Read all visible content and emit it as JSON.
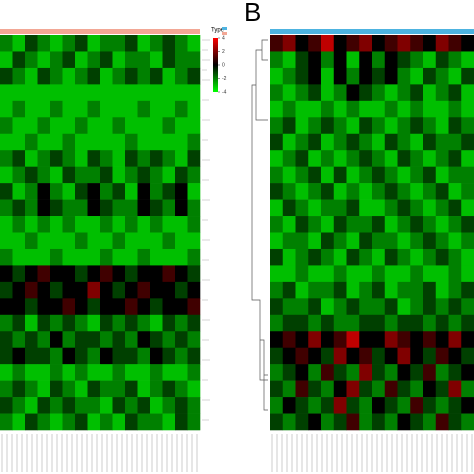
{
  "chart_data": [
    {
      "type": "heatmap",
      "annotation_color": "#f2a795",
      "low_color": "#00ff00",
      "mid_color": "#000000",
      "high_color": "#ff0000",
      "clim": [
        -4,
        4
      ],
      "legend_title": "Type",
      "colorbar_ticks": [
        4,
        2,
        0,
        -2,
        -4
      ],
      "values": [
        [
          -2,
          -3,
          -1,
          -2,
          -3,
          -2,
          -1,
          -3,
          -2,
          -2,
          -1,
          -3,
          -2,
          -1,
          -2,
          -3
        ],
        [
          -3,
          -1,
          -2,
          -3,
          -2,
          -1,
          -3,
          -2,
          -1,
          -3,
          -2,
          -2,
          -3,
          -1,
          -2,
          -2
        ],
        [
          -1,
          -2,
          -3,
          -1,
          -2,
          -3,
          -2,
          -1,
          -3,
          -2,
          -1,
          -2,
          -1,
          -3,
          -2,
          -1
        ],
        [
          -3,
          -3,
          -3,
          -3,
          -3,
          -3,
          -3,
          -3,
          -3,
          -3,
          -3,
          -3,
          -3,
          -3,
          -3,
          -3
        ],
        [
          -3,
          -2,
          -3,
          -3,
          -2,
          -3,
          -3,
          -2,
          -3,
          -3,
          -3,
          -2,
          -3,
          -3,
          -2,
          -3
        ],
        [
          -2,
          -3,
          -3,
          -2,
          -3,
          -3,
          -2,
          -3,
          -3,
          -2,
          -3,
          -3,
          -3,
          -2,
          -3,
          -3
        ],
        [
          -3,
          -3,
          -2,
          -3,
          -3,
          -2,
          -3,
          -3,
          -3,
          -3,
          -2,
          -3,
          -3,
          -3,
          -3,
          -2
        ],
        [
          -2,
          -1,
          -3,
          -2,
          -1,
          -2,
          -3,
          -1,
          -2,
          -3,
          -1,
          -2,
          -1,
          -2,
          -3,
          -1
        ],
        [
          -3,
          -2,
          -1,
          -2,
          -3,
          -1,
          -2,
          -2,
          -1,
          -3,
          -2,
          -1,
          -2,
          -3,
          -1,
          -2
        ],
        [
          -1,
          -3,
          -2,
          0,
          -2,
          -3,
          -1,
          0,
          -2,
          -1,
          -3,
          0,
          -2,
          -1,
          0,
          -3
        ],
        [
          -2,
          -1,
          -2,
          0,
          -1,
          -2,
          -2,
          0,
          -1,
          -2,
          -2,
          0,
          -1,
          -2,
          0,
          -2
        ],
        [
          -3,
          -2,
          -3,
          -2,
          -3,
          -2,
          -3,
          -3,
          -2,
          -3,
          -2,
          -3,
          -2,
          -3,
          -3,
          -2
        ],
        [
          -3,
          -3,
          -2,
          -3,
          -3,
          -3,
          -2,
          -3,
          -3,
          -2,
          -3,
          -3,
          -3,
          -2,
          -3,
          -3
        ],
        [
          -2,
          -3,
          -3,
          -3,
          -2,
          -3,
          -3,
          -3,
          -2,
          -3,
          -3,
          -2,
          -3,
          -3,
          -3,
          -2
        ],
        [
          0,
          -1,
          0,
          1,
          0,
          0,
          -1,
          0,
          1,
          0,
          -1,
          0,
          0,
          1,
          0,
          -1
        ],
        [
          -1,
          0,
          1,
          0,
          -1,
          0,
          0,
          2,
          0,
          -1,
          0,
          1,
          0,
          0,
          -1,
          0
        ],
        [
          0,
          0,
          -1,
          0,
          0,
          1,
          0,
          -1,
          0,
          0,
          1,
          0,
          -1,
          0,
          0,
          1
        ],
        [
          -2,
          -1,
          -3,
          -1,
          -2,
          -1,
          -2,
          -3,
          -1,
          -2,
          -1,
          -2,
          -3,
          -1,
          -2,
          -1
        ],
        [
          -1,
          -2,
          -1,
          -2,
          0,
          -2,
          -1,
          -1,
          -2,
          -1,
          -2,
          0,
          -1,
          -2,
          -1,
          -2
        ],
        [
          -1,
          0,
          -1,
          -1,
          -2,
          0,
          -1,
          -2,
          0,
          -1,
          -1,
          -2,
          0,
          -1,
          -2,
          -1
        ],
        [
          -3,
          -2,
          -3,
          -3,
          -2,
          -3,
          -2,
          -3,
          -3,
          -2,
          -3,
          -3,
          -2,
          -3,
          -3,
          -2
        ],
        [
          -2,
          -1,
          -2,
          -3,
          -1,
          -2,
          -3,
          -1,
          -2,
          -2,
          -1,
          -3,
          -2,
          -1,
          -2,
          -3
        ],
        [
          -1,
          -2,
          -3,
          -1,
          -2,
          -1,
          -2,
          -2,
          -3,
          -1,
          -2,
          -1,
          -3,
          -2,
          -1,
          -2
        ],
        [
          -2,
          -3,
          -1,
          -2,
          -3,
          -2,
          -1,
          -3,
          -2,
          -3,
          -1,
          -2,
          -2,
          -3,
          -1,
          -2
        ]
      ]
    },
    {
      "type": "heatmap",
      "panel_label": "B",
      "annotation_color": "#4db3e0",
      "low_color": "#00ff00",
      "mid_color": "#000000",
      "high_color": "#ff0000",
      "clim": [
        -4,
        4
      ],
      "values": [
        [
          1,
          2,
          0,
          1,
          3,
          0,
          1,
          2,
          0,
          1,
          2,
          1,
          0,
          2,
          1,
          0
        ],
        [
          -2,
          -3,
          -1,
          0,
          -2,
          0,
          -3,
          0,
          -2,
          0,
          -1,
          -2,
          -3,
          -1,
          -2,
          -3
        ],
        [
          -3,
          -2,
          -1,
          0,
          -3,
          0,
          -2,
          0,
          -1,
          0,
          -2,
          -3,
          -1,
          -2,
          -3,
          -1
        ],
        [
          -2,
          -3,
          -2,
          -1,
          -3,
          -2,
          0,
          -1,
          -2,
          -3,
          -2,
          -1,
          -3,
          -2,
          -1,
          -3
        ],
        [
          -3,
          -2,
          -3,
          -3,
          -2,
          -3,
          -2,
          -3,
          -3,
          -2,
          -3,
          -2,
          -3,
          -3,
          -2,
          -3
        ],
        [
          -2,
          -1,
          -3,
          -2,
          -1,
          -2,
          -3,
          -1,
          -2,
          -3,
          -2,
          -1,
          -2,
          -3,
          -1,
          -2
        ],
        [
          -1,
          -3,
          -2,
          -1,
          -3,
          -2,
          -1,
          -2,
          -3,
          -1,
          -2,
          -3,
          -1,
          -2,
          -2,
          -1
        ],
        [
          -3,
          -2,
          -1,
          -3,
          -2,
          -3,
          -2,
          -1,
          -2,
          -3,
          -1,
          -2,
          -3,
          -2,
          -1,
          -3
        ],
        [
          -2,
          -3,
          -2,
          -1,
          -3,
          -1,
          -3,
          -2,
          -1,
          -2,
          -3,
          -2,
          -1,
          -3,
          -2,
          -2
        ],
        [
          -1,
          -2,
          -3,
          -2,
          -1,
          -3,
          -2,
          -3,
          -2,
          -1,
          -2,
          -3,
          -2,
          -1,
          -3,
          -2
        ],
        [
          -3,
          -1,
          -2,
          -3,
          -2,
          -2,
          -1,
          -3,
          -3,
          -2,
          -1,
          -2,
          -3,
          -2,
          -1,
          -3
        ],
        [
          -2,
          -3,
          -1,
          -2,
          -3,
          -1,
          -2,
          -2,
          -1,
          -3,
          -2,
          -1,
          -2,
          -3,
          -2,
          -1
        ],
        [
          -3,
          -2,
          -2,
          -3,
          -1,
          -2,
          -3,
          -1,
          -2,
          -2,
          -3,
          -2,
          -1,
          -2,
          -3,
          -2
        ],
        [
          -1,
          -3,
          -2,
          -1,
          -2,
          -3,
          -1,
          -2,
          -3,
          -1,
          -2,
          -3,
          -2,
          -1,
          -2,
          -3
        ],
        [
          -3,
          -3,
          -2,
          -3,
          -3,
          -2,
          -3,
          -3,
          -2,
          -3,
          -3,
          -2,
          -3,
          -3,
          -2,
          -3
        ],
        [
          -2,
          -1,
          -3,
          -2,
          -2,
          -1,
          -3,
          -2,
          -1,
          -3,
          -2,
          -2,
          -1,
          -3,
          -2,
          -1
        ],
        [
          -1,
          -2,
          -2,
          -1,
          -3,
          -2,
          -1,
          -2,
          -2,
          -1,
          -3,
          -2,
          -1,
          -2,
          -1,
          -2
        ],
        [
          -2,
          -1,
          -1,
          -2,
          -1,
          -2,
          -2,
          -1,
          -1,
          -2,
          -1,
          -1,
          -2,
          -1,
          -2,
          -1
        ],
        [
          0,
          1,
          0,
          2,
          0,
          1,
          3,
          0,
          0,
          2,
          1,
          0,
          1,
          0,
          2,
          0
        ],
        [
          -1,
          0,
          1,
          0,
          -1,
          2,
          0,
          1,
          -1,
          0,
          2,
          0,
          -1,
          1,
          0,
          -1
        ],
        [
          -2,
          -1,
          0,
          -2,
          1,
          -1,
          -2,
          2,
          -1,
          -2,
          0,
          -1,
          1,
          -2,
          -1,
          0
        ],
        [
          -1,
          -2,
          1,
          -1,
          -2,
          0,
          2,
          -1,
          -2,
          1,
          -1,
          -2,
          0,
          -1,
          2,
          -2
        ],
        [
          -2,
          0,
          -1,
          -2,
          -1,
          2,
          -1,
          -2,
          0,
          -1,
          -2,
          1,
          -1,
          -2,
          -1,
          0
        ],
        [
          -1,
          -2,
          -1,
          0,
          -2,
          -1,
          1,
          -2,
          -1,
          -2,
          0,
          -1,
          -2,
          1,
          -1,
          -2
        ]
      ]
    }
  ]
}
